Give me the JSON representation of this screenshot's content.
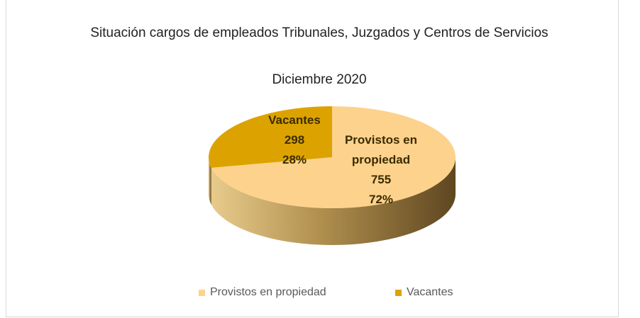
{
  "chart_data": {
    "type": "pie3d",
    "title": "Situación cargos de empleados Tribunales, Juzgados y Centros de Servicios",
    "subtitle": "Diciembre 2020",
    "categories": [
      "Provistos en propiedad",
      "Vacantes"
    ],
    "values": [
      755,
      298
    ],
    "percentages": [
      72,
      28
    ],
    "percentage_labels": [
      "72%",
      "28%"
    ],
    "colors": [
      "#fdd28c",
      "#dca300"
    ],
    "legend": "bottom"
  }
}
